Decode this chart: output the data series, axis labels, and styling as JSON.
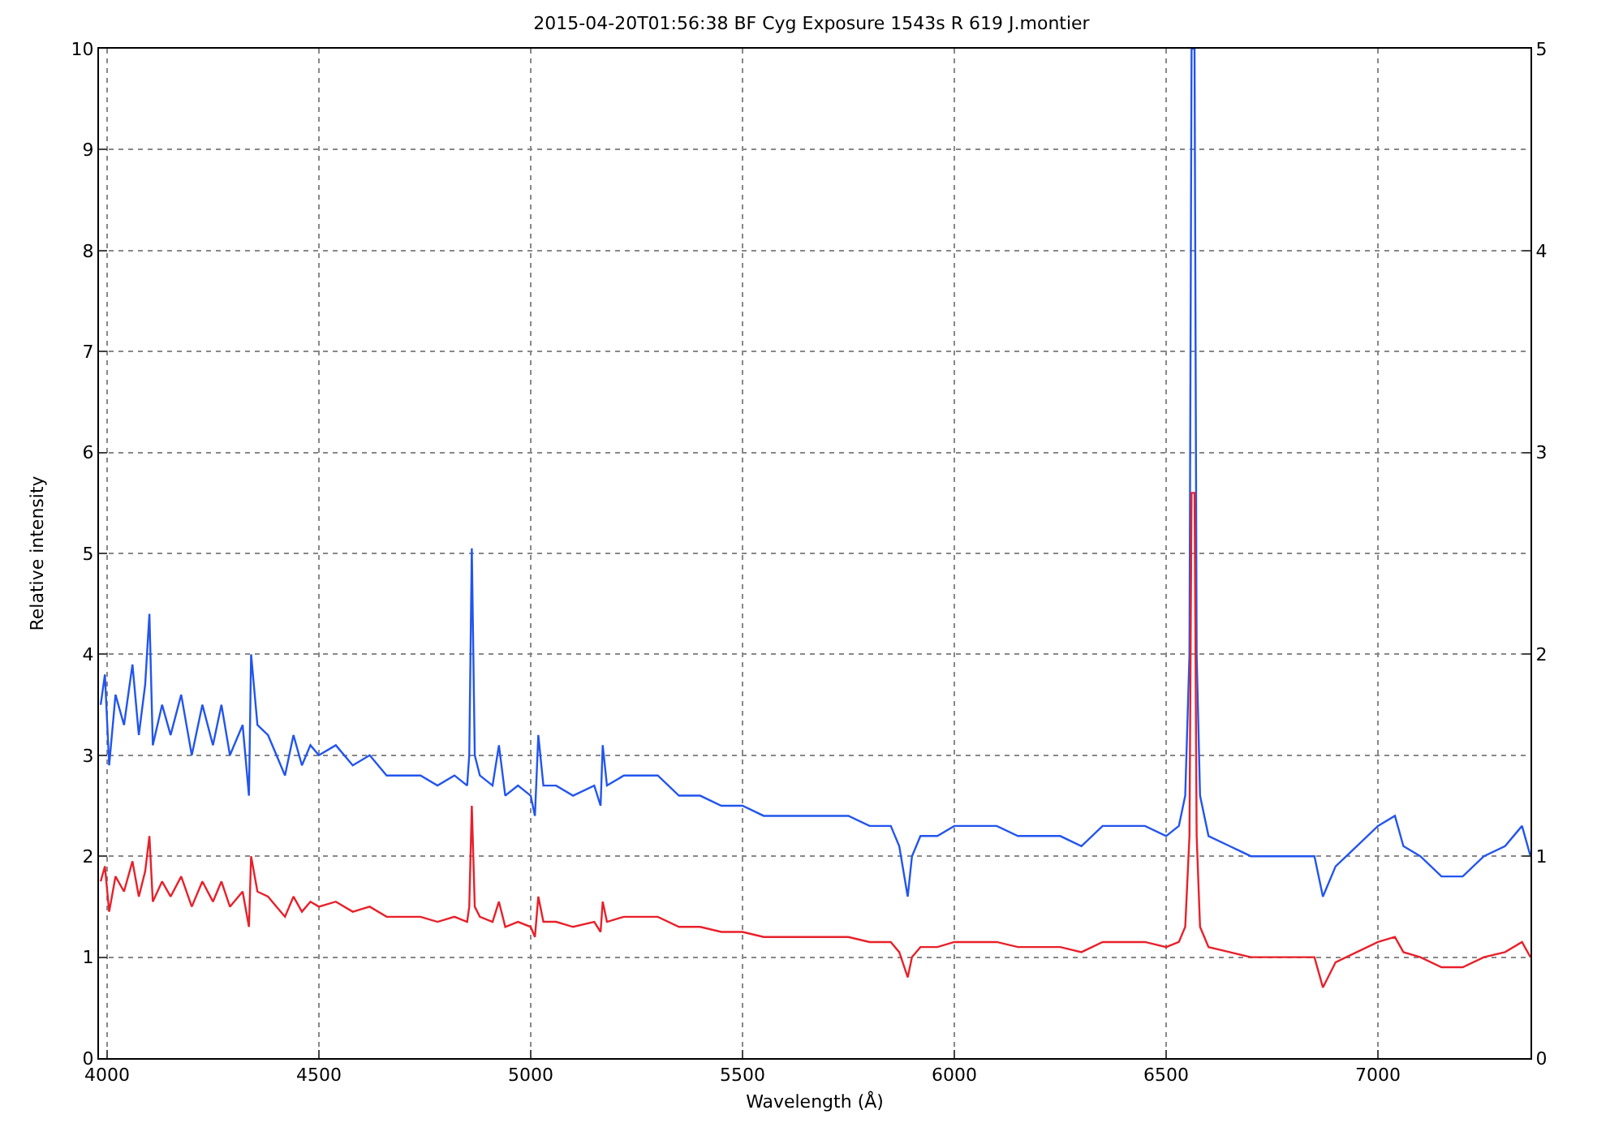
{
  "chart_data": {
    "type": "line",
    "title": "2015-04-20T01:56:38 BF Cyg Exposure 1543s R 619 J.montier",
    "xlabel": "Wavelength (Å)",
    "ylabel": "Relative intensity",
    "x": [
      3985,
      3995,
      4005,
      4020,
      4040,
      4060,
      4075,
      4090,
      4100,
      4108,
      4130,
      4150,
      4175,
      4200,
      4225,
      4250,
      4270,
      4290,
      4320,
      4335,
      4340,
      4355,
      4380,
      4400,
      4420,
      4440,
      4460,
      4480,
      4500,
      4540,
      4580,
      4620,
      4660,
      4700,
      4740,
      4780,
      4820,
      4850,
      4855,
      4861,
      4868,
      4880,
      4910,
      4925,
      4940,
      4970,
      5000,
      5010,
      5018,
      5030,
      5060,
      5100,
      5150,
      5165,
      5170,
      5180,
      5220,
      5260,
      5300,
      5350,
      5400,
      5450,
      5500,
      5550,
      5600,
      5650,
      5700,
      5750,
      5800,
      5850,
      5870,
      5890,
      5900,
      5920,
      5960,
      6000,
      6050,
      6100,
      6150,
      6200,
      6250,
      6300,
      6350,
      6400,
      6450,
      6500,
      6530,
      6545,
      6555,
      6560,
      6567,
      6572,
      6580,
      6600,
      6650,
      6700,
      6750,
      6800,
      6850,
      6870,
      6900,
      6950,
      7000,
      7040,
      7060,
      7100,
      7150,
      7200,
      7250,
      7300,
      7340,
      7360
    ],
    "series": [
      {
        "color": "#2255ee",
        "values": [
          3.5,
          3.8,
          2.9,
          3.6,
          3.3,
          3.9,
          3.2,
          3.7,
          4.4,
          3.1,
          3.5,
          3.2,
          3.6,
          3.0,
          3.5,
          3.1,
          3.5,
          3.0,
          3.3,
          2.6,
          4.0,
          3.3,
          3.2,
          3.0,
          2.8,
          3.2,
          2.9,
          3.1,
          3.0,
          3.1,
          2.9,
          3.0,
          2.8,
          2.8,
          2.8,
          2.7,
          2.8,
          2.7,
          3.0,
          5.05,
          3.0,
          2.8,
          2.7,
          3.1,
          2.6,
          2.7,
          2.6,
          2.4,
          3.2,
          2.7,
          2.7,
          2.6,
          2.7,
          2.5,
          3.1,
          2.7,
          2.8,
          2.8,
          2.8,
          2.6,
          2.6,
          2.5,
          2.5,
          2.4,
          2.4,
          2.4,
          2.4,
          2.4,
          2.3,
          2.3,
          2.1,
          1.6,
          2.0,
          2.2,
          2.2,
          2.3,
          2.3,
          2.3,
          2.2,
          2.2,
          2.2,
          2.1,
          2.3,
          2.3,
          2.3,
          2.2,
          2.3,
          2.6,
          4.0,
          10,
          10,
          4.0,
          2.6,
          2.2,
          2.1,
          2.0,
          2.0,
          2.0,
          2.0,
          1.6,
          1.9,
          2.1,
          2.3,
          2.4,
          2.1,
          2.0,
          1.8,
          1.8,
          2.0,
          2.1,
          2.3,
          2.0
        ]
      },
      {
        "color": "#e8202a",
        "values": [
          1.75,
          1.9,
          1.45,
          1.8,
          1.65,
          1.95,
          1.6,
          1.85,
          2.2,
          1.55,
          1.75,
          1.6,
          1.8,
          1.5,
          1.75,
          1.55,
          1.75,
          1.5,
          1.65,
          1.3,
          2.0,
          1.65,
          1.6,
          1.5,
          1.4,
          1.6,
          1.45,
          1.55,
          1.5,
          1.55,
          1.45,
          1.5,
          1.4,
          1.4,
          1.4,
          1.35,
          1.4,
          1.35,
          1.5,
          2.5,
          1.5,
          1.4,
          1.35,
          1.55,
          1.3,
          1.35,
          1.3,
          1.2,
          1.6,
          1.35,
          1.35,
          1.3,
          1.35,
          1.25,
          1.55,
          1.35,
          1.4,
          1.4,
          1.4,
          1.3,
          1.3,
          1.25,
          1.25,
          1.2,
          1.2,
          1.2,
          1.2,
          1.2,
          1.15,
          1.15,
          1.05,
          0.8,
          1.0,
          1.1,
          1.1,
          1.15,
          1.15,
          1.15,
          1.1,
          1.1,
          1.1,
          1.05,
          1.15,
          1.15,
          1.15,
          1.1,
          1.15,
          1.3,
          2.2,
          5.6,
          5.6,
          2.2,
          1.3,
          1.1,
          1.05,
          1.0,
          1.0,
          1.0,
          1.0,
          0.7,
          0.95,
          1.05,
          1.15,
          1.2,
          1.05,
          1.0,
          0.9,
          0.9,
          1.0,
          1.05,
          1.15,
          1.0
        ]
      }
    ],
    "xlim": [
      3981,
      7360
    ],
    "xticks": [
      4000,
      4500,
      5000,
      5500,
      6000,
      6500,
      7000
    ],
    "ylim": [
      0,
      10
    ],
    "yticks": [
      0,
      1,
      2,
      3,
      4,
      5,
      6,
      7,
      8,
      9,
      10
    ],
    "y2lim": [
      0,
      5
    ],
    "y2ticks": [
      0,
      1,
      2,
      3,
      4,
      5
    ],
    "grid": true,
    "line_style": "solid"
  }
}
